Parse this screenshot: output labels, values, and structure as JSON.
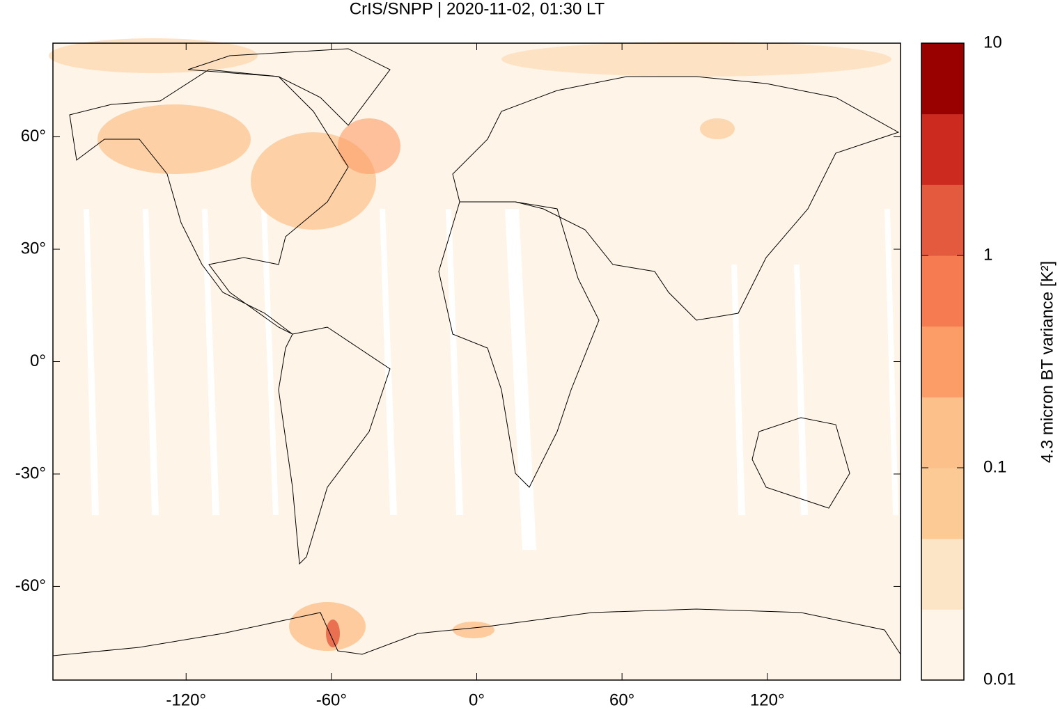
{
  "chart_data": {
    "type": "map",
    "title": "CrIS/SNPP | 2020-11-02, 01:30 LT",
    "xlim": [
      -175,
      175
    ],
    "ylim": [
      -85,
      85
    ],
    "xticks": [
      {
        "value": -120,
        "label": "-120°"
      },
      {
        "value": -60,
        "label": "-60°"
      },
      {
        "value": 0,
        "label": "0°"
      },
      {
        "value": 60,
        "label": "60°"
      },
      {
        "value": 120,
        "label": "120°"
      }
    ],
    "yticks": [
      {
        "value": 60,
        "label": "60°"
      },
      {
        "value": 30,
        "label": "30°"
      },
      {
        "value": 0,
        "label": "0°"
      },
      {
        "value": -30,
        "label": "-30°"
      },
      {
        "value": -60,
        "label": "-60°"
      }
    ],
    "colorbar": {
      "label": "4.3 micron BT variance [K²]",
      "log_scale": true,
      "lim": [
        0.01,
        10
      ],
      "ticks": [
        10,
        1,
        0.1,
        0.01
      ],
      "colors": [
        "#fef4e8",
        "#fbe5c6",
        "#fcca94",
        "#fcc08a",
        "#fc9c66",
        "#f67b51",
        "#e35a3e",
        "#cc2a1e",
        "#990000"
      ]
    }
  }
}
